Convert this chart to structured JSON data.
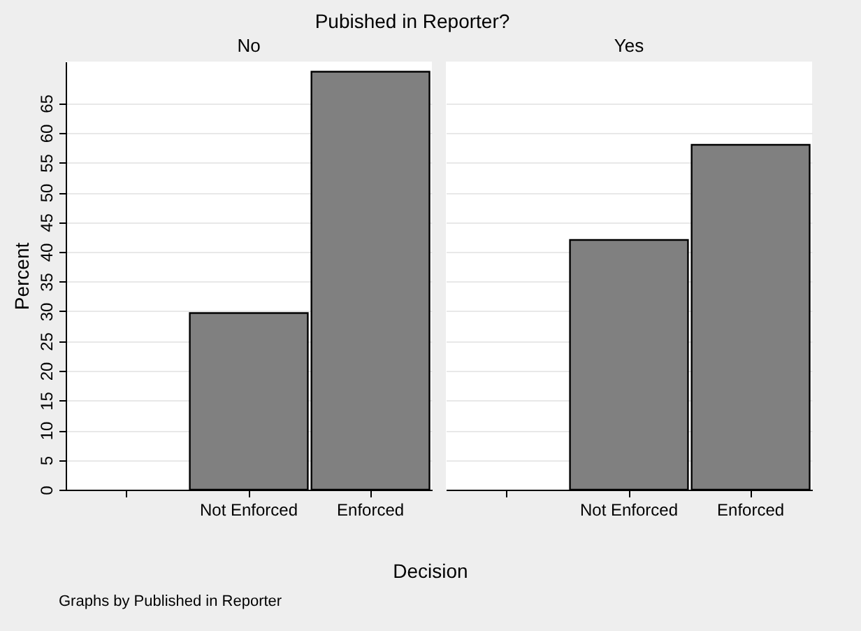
{
  "chart_data": [
    {
      "type": "bar",
      "title": "Pubished in Reporter?",
      "subtitle": "No",
      "categories": [
        null,
        "Not Enforced",
        "Enforced"
      ],
      "values": [
        null,
        29.7,
        70.3
      ],
      "color": "#808080",
      "ylabel": "Percent",
      "xlabel": "Decision",
      "ylim": [
        0,
        72
      ],
      "yticks": [
        0,
        5,
        10,
        15,
        20,
        25,
        30,
        35,
        40,
        45,
        50,
        55,
        60,
        65
      ],
      "grid": "y",
      "annotations": [
        "Graphs by Published in Reporter"
      ]
    },
    {
      "type": "bar",
      "subtitle": "Yes",
      "categories": [
        null,
        "Not Enforced",
        "Enforced"
      ],
      "values": [
        null,
        42,
        58
      ],
      "color": "#808080",
      "ylim": [
        0,
        72
      ],
      "yticks": [
        0,
        5,
        10,
        15,
        20,
        25,
        30,
        35,
        40,
        45,
        50,
        55,
        60,
        65
      ],
      "grid": "y",
      "tick_labels": "x"
    }
  ]
}
